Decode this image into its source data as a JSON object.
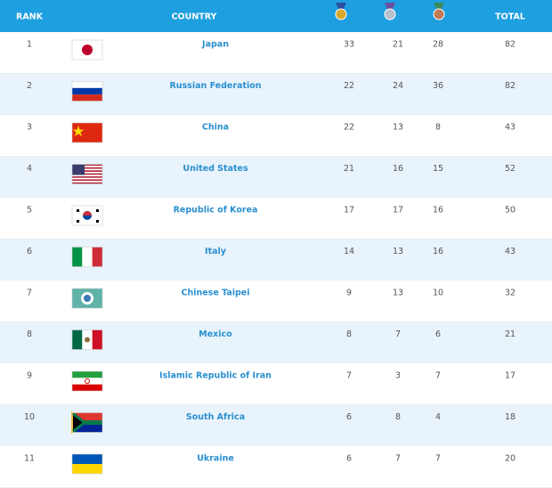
{
  "header": {
    "rank": "RANK",
    "country": "COUNTRY",
    "total": "TOTAL"
  },
  "table": {
    "rows": [
      [
        "1",
        "Japan",
        "33",
        "21",
        "28",
        "82"
      ],
      [
        "2",
        "Russian Federation",
        "22",
        "24",
        "36",
        "82"
      ],
      [
        "3",
        "China",
        "22",
        "13",
        "8",
        "43"
      ],
      [
        "4",
        "United States",
        "21",
        "16",
        "15",
        "52"
      ],
      [
        "5",
        "Republic of Korea",
        "17",
        "17",
        "16",
        "50"
      ],
      [
        "6",
        "Italy",
        "14",
        "13",
        "16",
        "43"
      ],
      [
        "7",
        "Chinese Taipei",
        "9",
        "13",
        "10",
        "32"
      ],
      [
        "8",
        "Mexico",
        "8",
        "7",
        "6",
        "21"
      ],
      [
        "9",
        "Islamic Republic of Iran",
        "7",
        "3",
        "7",
        "17"
      ],
      [
        "10",
        "South Africa",
        "6",
        "8",
        "4",
        "18"
      ],
      [
        "11",
        "Ukraine",
        "6",
        "7",
        "7",
        "20"
      ]
    ]
  }
}
